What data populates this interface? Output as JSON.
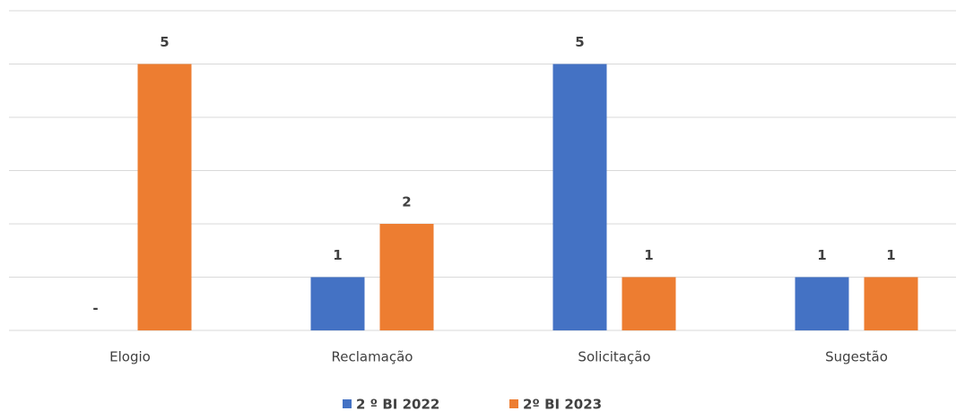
{
  "chart_data": {
    "type": "bar",
    "categories": [
      "Elogio",
      "Reclamação",
      "Solicitação",
      "Sugestão"
    ],
    "series": [
      {
        "name": "2 º BI 2022",
        "color": "#4472c4",
        "values": [
          0,
          1,
          5,
          1
        ],
        "value_labels": [
          "-",
          "1",
          "5",
          "1"
        ]
      },
      {
        "name": "2º BI 2023",
        "color": "#ed7d31",
        "values": [
          5,
          2,
          1,
          1
        ],
        "value_labels": [
          "5",
          "2",
          "1",
          "1"
        ]
      }
    ],
    "ylim": [
      0,
      6
    ],
    "yticks": [
      0,
      1,
      2,
      3,
      4,
      5,
      6
    ],
    "grid": true,
    "legend": "bottom"
  }
}
